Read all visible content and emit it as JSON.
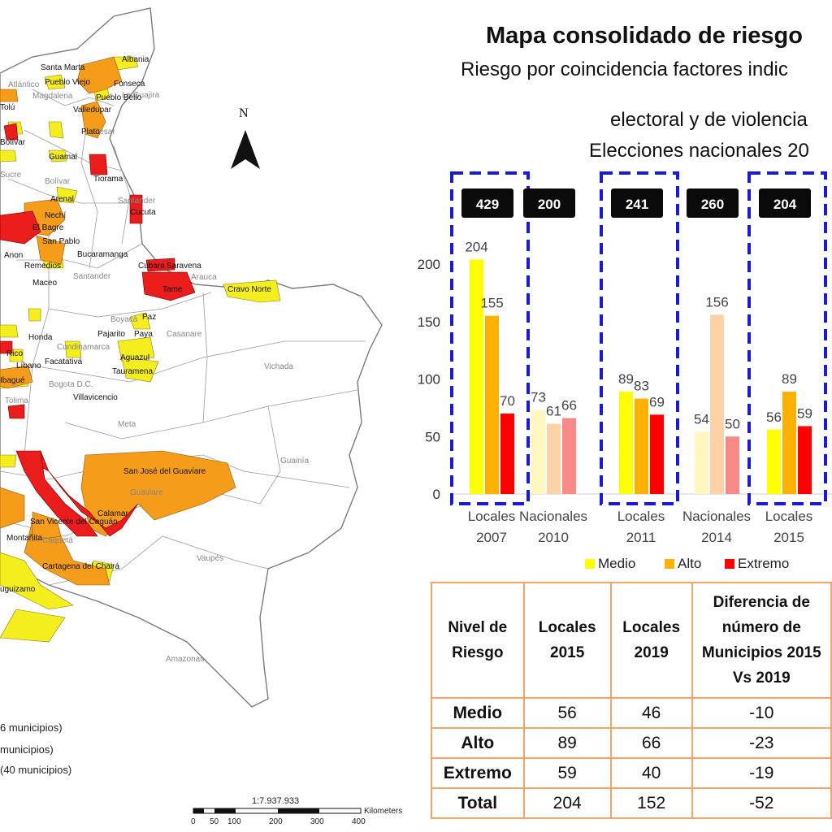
{
  "map": {
    "north_label": "N",
    "places": [
      {
        "name": "Santa Marta",
        "kind": "muni"
      },
      {
        "name": "Albania",
        "kind": "muni"
      },
      {
        "name": "Pueblo Viejo",
        "kind": "muni"
      },
      {
        "name": "Fonseca",
        "kind": "muni"
      },
      {
        "name": "La Guajira",
        "kind": "dept"
      },
      {
        "name": "Atlántico",
        "kind": "dept"
      },
      {
        "name": "Magdalena",
        "kind": "dept"
      },
      {
        "name": "Pueblo Bello",
        "kind": "muni"
      },
      {
        "name": "Valledupar",
        "kind": "muni"
      },
      {
        "name": "Cesar",
        "kind": "dept"
      },
      {
        "name": "Plato",
        "kind": "muni"
      },
      {
        "name": "Sucre",
        "kind": "dept"
      },
      {
        "name": "Bolívar",
        "kind": "dept"
      },
      {
        "name": "Guamal",
        "kind": "muni"
      },
      {
        "name": "Tiorama",
        "kind": "muni"
      },
      {
        "name": "Santander",
        "kind": "dept"
      },
      {
        "name": "Arenal",
        "kind": "muni"
      },
      {
        "name": "Cucuta",
        "kind": "muni"
      },
      {
        "name": "Nechí",
        "kind": "muni"
      },
      {
        "name": "El Bagre",
        "kind": "muni"
      },
      {
        "name": "San Pablo",
        "kind": "muni"
      },
      {
        "name": "Remedios",
        "kind": "muni"
      },
      {
        "name": "Bucaramanga",
        "kind": "muni"
      },
      {
        "name": "Cubara",
        "kind": "muni"
      },
      {
        "name": "Saravena",
        "kind": "muni"
      },
      {
        "name": "Arauca",
        "kind": "dept"
      },
      {
        "name": "Tame",
        "kind": "muni"
      },
      {
        "name": "Cravo Norte",
        "kind": "muni"
      },
      {
        "name": "Maceo",
        "kind": "muni"
      },
      {
        "name": "Santander",
        "kind": "dept"
      },
      {
        "name": "Boyacá",
        "kind": "dept"
      },
      {
        "name": "Paz",
        "kind": "muni"
      },
      {
        "name": "Pajarito",
        "kind": "muni"
      },
      {
        "name": "Paya",
        "kind": "muni"
      },
      {
        "name": "Casanare",
        "kind": "dept"
      },
      {
        "name": "Honda",
        "kind": "muni"
      },
      {
        "name": "Cundinamarca",
        "kind": "dept"
      },
      {
        "name": "Aguazul",
        "kind": "muni"
      },
      {
        "name": "Facatativá",
        "kind": "muni"
      },
      {
        "name": "Líbano",
        "kind": "muni"
      },
      {
        "name": "Rico",
        "kind": "muni"
      },
      {
        "name": "Bogota D.C.",
        "kind": "dept"
      },
      {
        "name": "Tauramena",
        "kind": "muni"
      },
      {
        "name": "Ibagué",
        "kind": "muni"
      },
      {
        "name": "Tolima",
        "kind": "dept"
      },
      {
        "name": "Villavicencio",
        "kind": "muni"
      },
      {
        "name": "Vichada",
        "kind": "dept"
      },
      {
        "name": "Meta",
        "kind": "dept"
      },
      {
        "name": "Guainía",
        "kind": "dept"
      },
      {
        "name": "San José del Guaviare",
        "kind": "muni"
      },
      {
        "name": "Guaviare",
        "kind": "dept"
      },
      {
        "name": "Calamar",
        "kind": "muni"
      },
      {
        "name": "San Vicente del Caguán",
        "kind": "muni"
      },
      {
        "name": "Montañita",
        "kind": "muni"
      },
      {
        "name": "Caquetá",
        "kind": "dept"
      },
      {
        "name": "Vaupés",
        "kind": "dept"
      },
      {
        "name": "Cartagena del Chairá",
        "kind": "muni"
      },
      {
        "name": "uguizamo",
        "kind": "muni"
      },
      {
        "name": "Amazonas",
        "kind": "dept"
      },
      {
        "name": "Anon",
        "kind": "muni"
      },
      {
        "name": "Tolú",
        "kind": "muni"
      },
      {
        "name": "Bolívar",
        "kind": "muni"
      }
    ],
    "legend": [
      "6 municipios)",
      "municipios)",
      "(40 municipios)"
    ],
    "scale": {
      "label": "1:7.937.933",
      "ticks": [
        "0",
        "50",
        "100",
        "200",
        "300",
        "400"
      ],
      "unit": "Kilometers"
    }
  },
  "title": "Mapa consolidado de riesgo",
  "subtitle_lines": [
    "Riesgo por coincidencia factores indic",
    "electoral y de violencia",
    "Elecciones nacionales 20"
  ],
  "colors": {
    "medio": "#ffff00",
    "alto": "#ffb000",
    "extremo": "#ff0000",
    "medio_light": "#fff6c0",
    "alto_light": "#fdd2a6",
    "extremo_light": "#f58a86",
    "highlight_border": "#1a1ad6",
    "table_border": "#f2a56b",
    "map_red": "#ea1c1c",
    "map_orange": "#f59c1a",
    "map_yellow": "#f4ee1e"
  },
  "chart_data": {
    "type": "bar",
    "categories": [
      [
        "Locales",
        "2007"
      ],
      [
        "Nacionales",
        "2010"
      ],
      [
        "Locales",
        "2011"
      ],
      [
        "Nacionales",
        "2014"
      ],
      [
        "Locales",
        "2015"
      ]
    ],
    "totals": [
      429,
      200,
      241,
      260,
      204
    ],
    "highlighted": [
      true,
      false,
      true,
      false,
      true
    ],
    "series": [
      {
        "name": "Medio",
        "values": [
          204,
          73,
          89,
          54,
          56
        ]
      },
      {
        "name": "Alto",
        "values": [
          155,
          61,
          83,
          156,
          89
        ]
      },
      {
        "name": "Extremo",
        "values": [
          70,
          66,
          69,
          50,
          59
        ]
      }
    ],
    "yticks": [
      0,
      50,
      100,
      150,
      200
    ],
    "ylim": [
      0,
      210
    ],
    "grid": false,
    "legend": "bottom"
  },
  "table": {
    "headers": [
      "Nivel de Riesgo",
      "Locales 2015",
      "Locales 2019",
      "Diferencia de número de Municipios 2015 Vs 2019"
    ],
    "rows": [
      [
        "Medio",
        "56",
        "46",
        "-10"
      ],
      [
        "Alto",
        "89",
        "66",
        "-23"
      ],
      [
        "Extremo",
        "59",
        "40",
        "-19"
      ],
      [
        "Total",
        "204",
        "152",
        "-52"
      ]
    ]
  }
}
